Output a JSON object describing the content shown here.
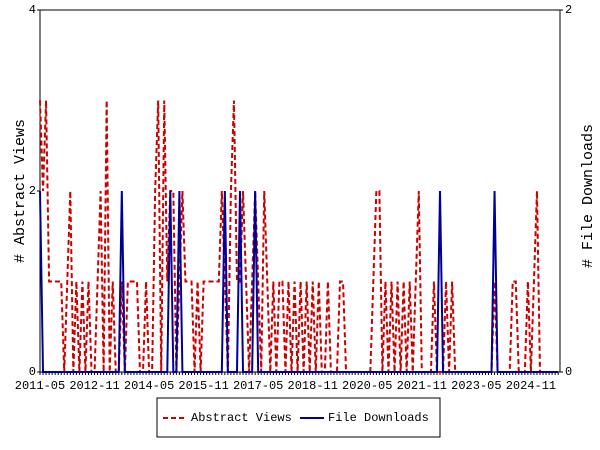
{
  "chart_data": {
    "type": "line",
    "y_label": "# Abstract Views",
    "y2_label": "# File Downloads",
    "categories": [
      "2011-05",
      "2011-06",
      "2011-07",
      "2011-08",
      "2011-09",
      "2011-10",
      "2011-11",
      "2011-12",
      "2012-01",
      "2012-02",
      "2012-03",
      "2012-04",
      "2012-05",
      "2012-06",
      "2012-07",
      "2012-08",
      "2012-09",
      "2012-10",
      "2012-11",
      "2012-12",
      "2013-01",
      "2013-02",
      "2013-03",
      "2013-04",
      "2013-05",
      "2013-06",
      "2013-07",
      "2013-08",
      "2013-09",
      "2013-10",
      "2013-11",
      "2013-12",
      "2014-01",
      "2014-02",
      "2014-03",
      "2014-04",
      "2014-05",
      "2014-06",
      "2014-07",
      "2014-08",
      "2014-09",
      "2014-10",
      "2014-11",
      "2014-12",
      "2015-01",
      "2015-02",
      "2015-03",
      "2015-04",
      "2015-05",
      "2015-06",
      "2015-07",
      "2015-08",
      "2015-09",
      "2015-10",
      "2015-11",
      "2015-12",
      "2016-01",
      "2016-02",
      "2016-03",
      "2016-04",
      "2016-05",
      "2016-06",
      "2016-07",
      "2016-08",
      "2016-09",
      "2016-10",
      "2016-11",
      "2016-12",
      "2017-01",
      "2017-02",
      "2017-03",
      "2017-04",
      "2017-05",
      "2017-06",
      "2017-07",
      "2017-08",
      "2017-09",
      "2017-10",
      "2017-11",
      "2017-12",
      "2018-01",
      "2018-02",
      "2018-03",
      "2018-04",
      "2018-05",
      "2018-06",
      "2018-07",
      "2018-08",
      "2018-09",
      "2018-10",
      "2018-11",
      "2018-12",
      "2019-01",
      "2019-02",
      "2019-03",
      "2019-04",
      "2019-05",
      "2019-06",
      "2019-07",
      "2019-08",
      "2019-09",
      "2019-10",
      "2019-11",
      "2019-12",
      "2020-01",
      "2020-02",
      "2020-03",
      "2020-04",
      "2020-05",
      "2020-06",
      "2020-07",
      "2020-08",
      "2020-09",
      "2020-10",
      "2020-11",
      "2020-12",
      "2021-01",
      "2021-02",
      "2021-03",
      "2021-04",
      "2021-05",
      "2021-06",
      "2021-07",
      "2021-08",
      "2021-09",
      "2021-10",
      "2021-11",
      "2021-12",
      "2022-01",
      "2022-02",
      "2022-03",
      "2022-04",
      "2022-05",
      "2022-06",
      "2022-07",
      "2022-08",
      "2022-09",
      "2022-10",
      "2022-11",
      "2022-12",
      "2023-01",
      "2023-02",
      "2023-03",
      "2023-04",
      "2023-05",
      "2023-06",
      "2023-07",
      "2023-08",
      "2023-09",
      "2023-10",
      "2023-11",
      "2023-12",
      "2024-01",
      "2024-02",
      "2024-03",
      "2024-04",
      "2024-05",
      "2024-06",
      "2024-07",
      "2024-08",
      "2024-09",
      "2024-10",
      "2024-11",
      "2024-12",
      "2025-01",
      "2025-02",
      "2025-03",
      "2025-04",
      "2025-05",
      "2025-06",
      "2025-07",
      "2025-08"
    ],
    "series": [
      {
        "name": "Abstract Views",
        "color": "#cc0000",
        "dashed": true,
        "values": [
          3,
          2,
          3,
          1,
          1,
          1,
          1,
          1,
          0,
          1,
          2,
          0,
          1,
          0,
          1,
          0,
          1,
          0,
          0,
          1,
          2,
          0,
          3,
          0,
          1,
          0,
          0,
          1,
          0,
          1,
          1,
          1,
          1,
          0,
          0,
          1,
          0,
          0,
          2,
          3,
          0,
          3,
          1,
          2,
          2,
          0,
          1,
          2,
          1,
          1,
          1,
          0,
          1,
          0,
          1,
          1,
          1,
          1,
          1,
          1,
          2,
          1,
          0,
          2,
          3,
          1,
          1,
          2,
          1,
          0,
          1,
          2,
          1,
          0,
          2,
          1,
          0,
          1,
          0,
          1,
          1,
          0,
          1,
          0,
          1,
          0,
          1,
          0,
          1,
          0,
          1,
          0,
          1,
          0,
          0,
          1,
          0,
          0,
          0,
          1,
          1,
          0,
          0,
          0,
          0,
          0,
          0,
          0,
          0,
          0,
          1,
          2,
          2,
          0,
          1,
          0,
          1,
          0,
          1,
          0,
          1,
          0,
          1,
          0,
          1,
          2,
          0,
          0,
          0,
          0,
          1,
          0,
          0,
          0,
          1,
          0,
          1,
          0,
          0,
          0,
          0,
          0,
          0,
          0,
          0,
          0,
          0,
          0,
          0,
          0,
          1,
          0,
          0,
          0,
          0,
          0,
          1,
          1,
          0,
          0,
          0,
          1,
          0,
          1,
          2,
          0,
          0,
          0,
          0,
          0,
          0,
          0
        ]
      },
      {
        "name": "File Downloads",
        "color": "#000099",
        "dashed": false,
        "axis": "y2",
        "values": [
          1,
          0,
          0,
          0,
          0,
          0,
          0,
          0,
          0,
          0,
          0,
          0,
          0,
          0,
          0,
          0,
          0,
          0,
          0,
          0,
          0,
          0,
          0,
          0,
          0,
          0,
          0,
          1,
          0,
          0,
          0,
          0,
          0,
          0,
          0,
          0,
          0,
          0,
          0,
          0,
          0,
          0,
          0,
          1,
          0,
          0,
          1,
          0,
          0,
          0,
          0,
          0,
          0,
          0,
          0,
          0,
          0,
          0,
          0,
          0,
          0,
          1,
          0,
          0,
          0,
          0,
          1,
          0,
          0,
          0,
          0,
          1,
          0,
          0,
          0,
          0,
          0,
          0,
          0,
          0,
          0,
          0,
          0,
          0,
          0,
          0,
          0,
          0,
          0,
          0,
          0,
          0,
          0,
          0,
          0,
          0,
          0,
          0,
          0,
          0,
          0,
          0,
          0,
          0,
          0,
          0,
          0,
          0,
          0,
          0,
          0,
          0,
          0,
          0,
          0,
          0,
          0,
          0,
          0,
          0,
          0,
          0,
          0,
          0,
          0,
          0,
          0,
          0,
          0,
          0,
          0,
          0,
          1,
          0,
          0,
          0,
          0,
          0,
          0,
          0,
          0,
          0,
          0,
          0,
          0,
          0,
          0,
          0,
          0,
          0,
          1,
          0,
          0,
          0,
          0,
          0,
          0,
          0,
          0,
          0,
          0,
          0,
          0,
          0,
          0,
          0,
          0,
          0,
          0,
          0,
          0,
          0
        ]
      }
    ],
    "ylim": [
      0,
      4
    ],
    "yticks": [
      0,
      2,
      4
    ],
    "y2lim": [
      0,
      2
    ],
    "y2ticks": [
      0,
      2
    ],
    "legend": "bottom"
  }
}
